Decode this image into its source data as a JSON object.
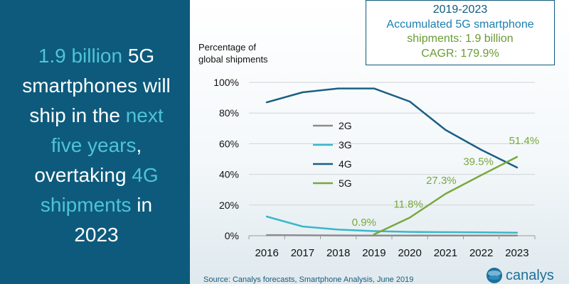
{
  "left": {
    "parts": [
      "1.9 billion",
      " 5G smartphones will ship in the ",
      "next five years",
      ", overtaking ",
      "4G shipments",
      " in 2023"
    ]
  },
  "info_box": {
    "line1": "2019-2023",
    "line2": "Accumulated 5G smartphone",
    "line3": "shipments: 1.9 billion",
    "line4": "CAGR: 179.9%"
  },
  "colors": {
    "panel_bg": "#0d5a7c",
    "highlight": "#4fc3d8",
    "series_2g": "#8c8c8c",
    "series_3g": "#3ab7c9",
    "series_4g": "#1b5f86",
    "series_5g": "#78a83c"
  },
  "source": "Source: Canalys forecasts, Smartphone Analysis, June 2019",
  "logo": {
    "text": "canalys",
    "icon": "canalys-logo-icon"
  },
  "chart_data": {
    "type": "line",
    "ylabel": "Percentage of\nglobal shipments",
    "x": [
      "2016",
      "2017",
      "2018",
      "2019",
      "2020",
      "2021",
      "2022",
      "2023"
    ],
    "ylim": [
      0,
      100
    ],
    "yticks": [
      "0%",
      "20%",
      "40%",
      "60%",
      "80%",
      "100%"
    ],
    "grid": true,
    "legend": "center",
    "series": [
      {
        "name": "2G",
        "color": "#8c8c8c",
        "values": [
          0.4,
          0.3,
          0.2,
          0.1,
          0.1,
          0.1,
          0.1,
          0.1
        ]
      },
      {
        "name": "3G",
        "color": "#3ab7c9",
        "values": [
          12.5,
          6,
          4,
          3,
          2.5,
          2.3,
          2.2,
          2
        ]
      },
      {
        "name": "4G",
        "color": "#1b5f86",
        "values": [
          87,
          93.5,
          96,
          96,
          87.5,
          69,
          56,
          44.5
        ]
      },
      {
        "name": "5G",
        "color": "#78a83c",
        "values": [
          null,
          null,
          null,
          0.9,
          11.8,
          27.3,
          39.5,
          51.4
        ]
      }
    ],
    "annotations": [
      {
        "series": "5G",
        "x": "2019",
        "label": "0.9%"
      },
      {
        "series": "5G",
        "x": "2020",
        "label": "11.8%"
      },
      {
        "series": "5G",
        "x": "2021",
        "label": "27.3%"
      },
      {
        "series": "5G",
        "x": "2022",
        "label": "39.5%"
      },
      {
        "series": "5G",
        "x": "2023",
        "label": "51.4%"
      }
    ]
  }
}
